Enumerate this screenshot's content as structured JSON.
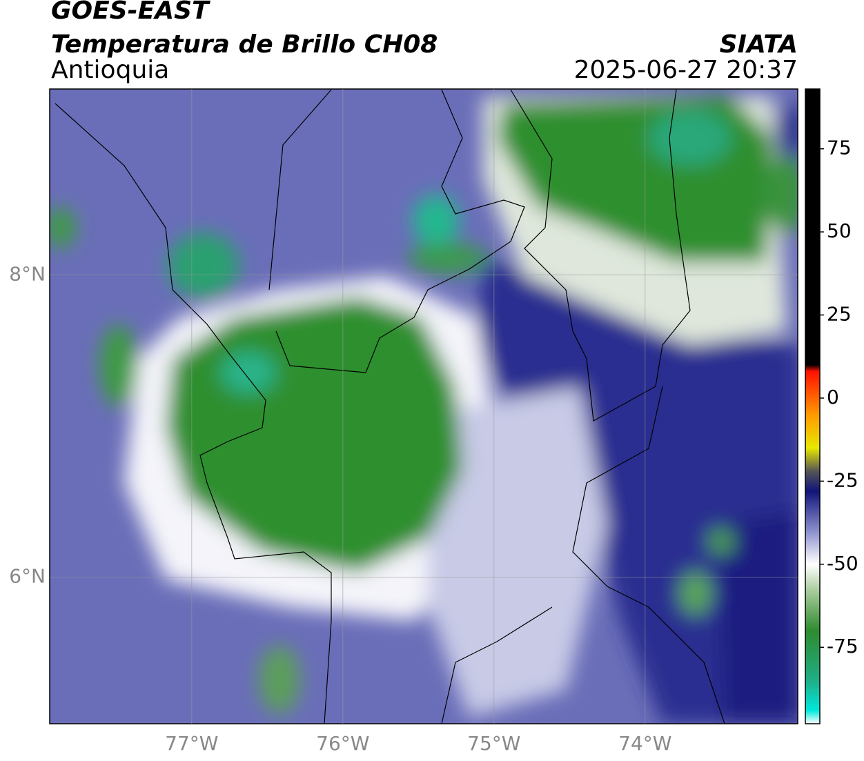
{
  "chart_data": {
    "type": "map",
    "title": "GOES-EAST",
    "subtitle": "Temperatura de Brillo CH08",
    "region": "Antioquia",
    "source": "SIATA",
    "datetime": "2025-06-27 20:37",
    "xlim": [
      -77.94,
      -72.99
    ],
    "ylim": [
      5.03,
      9.23
    ],
    "xticks": [
      {
        "value": -77,
        "label": "77°W"
      },
      {
        "value": -76,
        "label": "76°W"
      },
      {
        "value": -75,
        "label": "75°W"
      },
      {
        "value": -74,
        "label": "74°W"
      }
    ],
    "yticks": [
      {
        "value": 8,
        "label": "8°N"
      },
      {
        "value": 6,
        "label": "6°N"
      }
    ],
    "grid": true,
    "colorbar": {
      "lim": [
        -98,
        93
      ],
      "ticks": [
        75,
        50,
        25,
        0,
        -25,
        -50,
        -75
      ],
      "stops": [
        {
          "value": -98,
          "color": "#ffffff"
        },
        {
          "value": -94,
          "color": "#00e8dc"
        },
        {
          "value": -85,
          "color": "#1fae86"
        },
        {
          "value": -70,
          "color": "#2e8b2e"
        },
        {
          "value": -58,
          "color": "#a8cc9c"
        },
        {
          "value": -50,
          "color": "#ffffff"
        },
        {
          "value": -40,
          "color": "#8a8fcc"
        },
        {
          "value": -28,
          "color": "#10147a"
        },
        {
          "value": -22,
          "color": "#555555"
        },
        {
          "value": -15,
          "color": "#e8e800"
        },
        {
          "value": -5,
          "color": "#ff9900"
        },
        {
          "value": 8,
          "color": "#ff1100"
        },
        {
          "value": 10,
          "color": "#000000"
        },
        {
          "value": 93,
          "color": "#000000"
        }
      ]
    }
  }
}
